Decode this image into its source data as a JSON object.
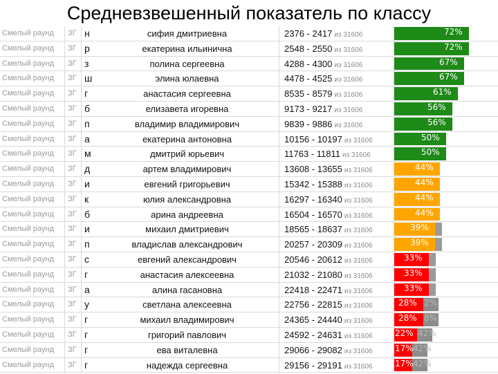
{
  "title": "Средневзвешенный показатель по классу",
  "colors": {
    "green": "#1e8a18",
    "orange": "#ffa500",
    "red": "#ff0000",
    "grey": "#8c8c8c"
  },
  "rows": [
    {
      "round": "Смелый раунд",
      "group": "ЗГ",
      "initial": "н",
      "name": "сифия дмитриевна",
      "rank": "2376 - 2417",
      "of": "из 31606",
      "percent": 72,
      "label": "72%",
      "rest": "",
      "color": "#1e8a18"
    },
    {
      "round": "Смелый раунд",
      "group": "ЗГ",
      "initial": "р",
      "name": "екатерина ильинична",
      "rank": "2548 - 2550",
      "of": "из 31606",
      "percent": 72,
      "label": "72%",
      "rest": "",
      "color": "#1e8a18"
    },
    {
      "round": "Смелый раунд",
      "group": "ЗГ",
      "initial": "з",
      "name": "полина сергеевна",
      "rank": "4288 - 4300",
      "of": "из 31606",
      "percent": 67,
      "label": "67%",
      "rest": "",
      "color": "#1e8a18"
    },
    {
      "round": "Смелый раунд",
      "group": "ЗГ",
      "initial": "ш",
      "name": "элина юлаевна",
      "rank": "4478 - 4525",
      "of": "из 31606",
      "percent": 67,
      "label": "67%",
      "rest": "",
      "color": "#1e8a18"
    },
    {
      "round": "Смелый раунд",
      "group": "ЗГ",
      "initial": "г",
      "name": "анастасия сергеевна",
      "rank": "8535 - 8579",
      "of": "из 31606",
      "percent": 61,
      "label": "61%",
      "rest": "",
      "color": "#1e8a18"
    },
    {
      "round": "Смелый раунд",
      "group": "ЗГ",
      "initial": "б",
      "name": "елизавета игоревна",
      "rank": "9173 - 9217",
      "of": "из 31606",
      "percent": 56,
      "label": "56%",
      "rest": "",
      "color": "#1e8a18"
    },
    {
      "round": "Смелый раунд",
      "group": "ЗГ",
      "initial": "п",
      "name": "владимир владимирович",
      "rank": "9839 - 9886",
      "of": "из 31606",
      "percent": 56,
      "label": "56%",
      "rest": "",
      "color": "#1e8a18"
    },
    {
      "round": "Смелый раунд",
      "group": "ЗГ",
      "initial": "а",
      "name": "екатерина антоновна",
      "rank": "10156 - 10197",
      "of": "из 31606",
      "percent": 50,
      "label": "50%",
      "rest": "",
      "color": "#1e8a18"
    },
    {
      "round": "Смелый раунд",
      "group": "ЗГ",
      "initial": "м",
      "name": "дмитрий юрьевич",
      "rank": "11763 - 11811",
      "of": "из 31606",
      "percent": 50,
      "label": "50%",
      "rest": "",
      "color": "#1e8a18"
    },
    {
      "round": "Смелый раунд",
      "group": "ЗГ",
      "initial": "д",
      "name": "артем владимирович",
      "rank": "13608 - 13655",
      "of": "из 31606",
      "percent": 44,
      "label": "44%",
      "rest": "",
      "color": "#ffa500"
    },
    {
      "round": "Смелый раунд",
      "group": "ЗГ",
      "initial": "и",
      "name": "евгений григорьевич",
      "rank": "15342 - 15388",
      "of": "из 31606",
      "percent": 44,
      "label": "44%",
      "rest": "",
      "color": "#ffa500"
    },
    {
      "round": "Смелый раунд",
      "group": "ЗГ",
      "initial": "к",
      "name": "юлия александровна",
      "rank": "16297 - 16340",
      "of": "из 31606",
      "percent": 44,
      "label": "44%",
      "rest": "",
      "color": "#ffa500"
    },
    {
      "round": "Смелый раунд",
      "group": "ЗГ",
      "initial": "б",
      "name": "арина андреевна",
      "rank": "16504 - 16570",
      "of": "из 31606",
      "percent": 44,
      "label": "44%",
      "rest": "",
      "color": "#ffa500"
    },
    {
      "round": "Смелый раунд",
      "group": "ЗГ",
      "initial": "и",
      "name": "михаил дмитриевич",
      "rank": "18565 - 18637",
      "of": "из 31606",
      "percent": 39,
      "label": "39%",
      "rest": "",
      "color": "#ffa500"
    },
    {
      "round": "Смелый раунд",
      "group": "ЗГ",
      "initial": "п",
      "name": "владислав александрович",
      "rank": "20257 - 20309",
      "of": "из 31606",
      "percent": 39,
      "label": "39%",
      "rest": "",
      "color": "#ffa500"
    },
    {
      "round": "Смелый раунд",
      "group": "ЗГ",
      "initial": "с",
      "name": "евгений александрович",
      "rank": "20546 - 20612",
      "of": "из 31606",
      "percent": 33,
      "label": "33%",
      "rest": "",
      "color": "#ff0000"
    },
    {
      "round": "Смелый раунд",
      "group": "ЗГ",
      "initial": "г",
      "name": "анастасия алексеевна",
      "rank": "21032 - 21080",
      "of": "из 31606",
      "percent": 33,
      "label": "33%",
      "rest": "",
      "color": "#ff0000"
    },
    {
      "round": "Смелый раунд",
      "group": "ЗГ",
      "initial": "а",
      "name": "алина гасановна",
      "rank": "22418 - 22471",
      "of": "из 31606",
      "percent": 33,
      "label": "33%",
      "rest": "",
      "color": "#ff0000"
    },
    {
      "round": "Смелый раунд",
      "group": "ЗГ",
      "initial": "у",
      "name": "светлана алексеевна",
      "rank": "22756 - 22815",
      "of": "из 31606",
      "percent": 28,
      "label": "28%",
      "rest": "2%",
      "color": "#ff0000"
    },
    {
      "round": "Смелый раунд",
      "group": "ЗГ",
      "initial": "г",
      "name": "михаил владимирович",
      "rank": "24365 - 24440",
      "of": "из 31606",
      "percent": 28,
      "label": "28%",
      "rest": "8%",
      "color": "#ff0000"
    },
    {
      "round": "Смелый раунд",
      "group": "ЗГ",
      "initial": "г",
      "name": "григорий павлович",
      "rank": "24592 - 24631",
      "of": "из 31606",
      "percent": 22,
      "label": "22%",
      "rest": "42%",
      "color": "#ff0000"
    },
    {
      "round": "Смелый раунд",
      "group": "ЗГ",
      "initial": "г",
      "name": "ева виталевна",
      "rank": "29066 - 29082",
      "of": "из 31606",
      "percent": 17,
      "label": "17%",
      "rest": "42%",
      "color": "#ff0000"
    },
    {
      "round": "Смелый раунд",
      "group": "ЗГ",
      "initial": "г",
      "name": "надежда сергеевна",
      "rank": "29156 - 29191",
      "of": "из 31606",
      "percent": 17,
      "label": "17%",
      "rest": "42%",
      "color": "#ff0000"
    }
  ]
}
